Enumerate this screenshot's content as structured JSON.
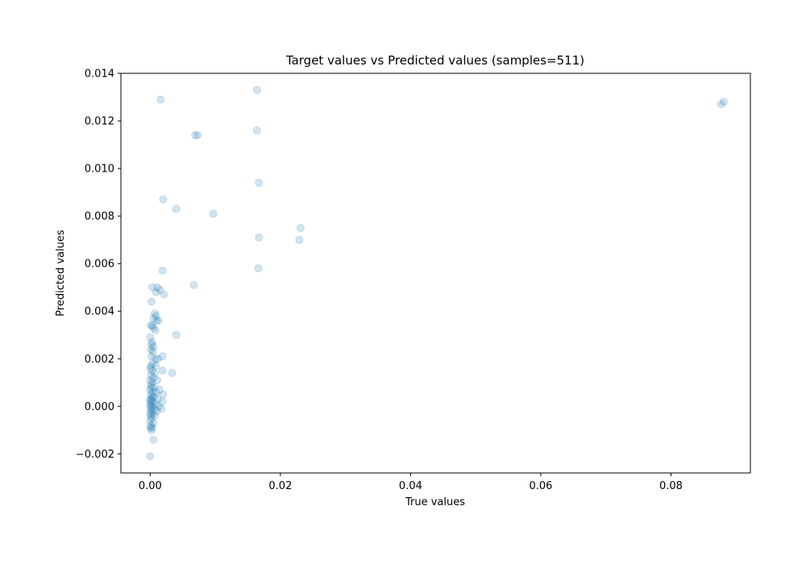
{
  "chart_data": {
    "type": "scatter",
    "title": "Target values vs Predicted values (samples=511)",
    "xlabel": "True values",
    "ylabel": "Predicted values",
    "xlim": [
      -0.0045,
      0.0922
    ],
    "ylim": [
      -0.0028,
      0.014
    ],
    "xticks": [
      0.0,
      0.02,
      0.04,
      0.06,
      0.08
    ],
    "xtick_labels": [
      "0.00",
      "0.02",
      "0.04",
      "0.06",
      "0.08"
    ],
    "yticks": [
      -0.002,
      0.0,
      0.002,
      0.004,
      0.006,
      0.008,
      0.01,
      0.012,
      0.014
    ],
    "ytick_labels": [
      "−0.002",
      "0.000",
      "0.002",
      "0.004",
      "0.006",
      "0.008",
      "0.010",
      "0.012",
      "0.014"
    ],
    "grid": false,
    "marker_color": "#1f77b4",
    "marker_alpha": 0.2,
    "points": [
      [
        0.0881,
        0.0128
      ],
      [
        0.0877,
        0.0127
      ],
      [
        0.0164,
        0.0133
      ],
      [
        0.0016,
        0.0129
      ],
      [
        0.0069,
        0.0114
      ],
      [
        0.0073,
        0.0114
      ],
      [
        0.0164,
        0.0116
      ],
      [
        0.0167,
        0.0094
      ],
      [
        0.002,
        0.0087
      ],
      [
        0.004,
        0.0083
      ],
      [
        0.0097,
        0.0081
      ],
      [
        0.0231,
        0.0075
      ],
      [
        0.0167,
        0.0071
      ],
      [
        0.0229,
        0.007
      ],
      [
        0.0166,
        0.0058
      ],
      [
        0.0019,
        0.0057
      ],
      [
        0.0067,
        0.0051
      ],
      [
        0.0003,
        0.005
      ],
      [
        0.0011,
        0.005
      ],
      [
        0.0015,
        0.0049
      ],
      [
        0.0009,
        0.0048
      ],
      [
        0.0021,
        0.0047
      ],
      [
        0.0002,
        0.0044
      ],
      [
        0.0007,
        0.0039
      ],
      [
        0.0009,
        0.0038
      ],
      [
        0.0005,
        0.0037
      ],
      [
        0.001,
        0.0036
      ],
      [
        0.0013,
        0.0036
      ],
      [
        0.0003,
        0.0034
      ],
      [
        0.0001,
        0.0034
      ],
      [
        0.0005,
        0.0033
      ],
      [
        0.0008,
        0.0032
      ],
      [
        0.004,
        0.003
      ],
      [
        0.0,
        0.0029
      ],
      [
        0.0003,
        0.0027
      ],
      [
        0.0002,
        0.0026
      ],
      [
        0.0005,
        0.0025
      ],
      [
        0.0001,
        0.0024
      ],
      [
        0.0004,
        0.0023
      ],
      [
        0.0019,
        0.0021
      ],
      [
        0.0002,
        0.0021
      ],
      [
        0.0008,
        0.002
      ],
      [
        0.0012,
        0.002
      ],
      [
        0.0004,
        0.0018
      ],
      [
        0.0001,
        0.0017
      ],
      [
        0.0009,
        0.0017
      ],
      [
        0.0,
        0.0016
      ],
      [
        0.0019,
        0.0015
      ],
      [
        0.0003,
        0.0015
      ],
      [
        0.0034,
        0.0014
      ],
      [
        0.0007,
        0.0014
      ],
      [
        0.0001,
        0.0013
      ],
      [
        0.0005,
        0.0012
      ],
      [
        0.0011,
        0.0011
      ],
      [
        0.0,
        0.0011
      ],
      [
        0.0003,
        0.001
      ],
      [
        0.0001,
        0.0009
      ],
      [
        0.0006,
        0.0008
      ],
      [
        0.0002,
        0.0008
      ],
      [
        0.0014,
        0.0007
      ],
      [
        0.0,
        0.0007
      ],
      [
        0.0004,
        0.0006
      ],
      [
        0.0009,
        0.0006
      ],
      [
        0.0001,
        0.0005
      ],
      [
        0.002,
        0.0005
      ],
      [
        0.0003,
        0.0004
      ],
      [
        0.0006,
        0.0004
      ],
      [
        0.0,
        0.0003
      ],
      [
        0.0012,
        0.0003
      ],
      [
        0.0002,
        0.0003
      ],
      [
        0.0004,
        0.0002
      ],
      [
        0.0019,
        0.0002
      ],
      [
        0.0,
        0.0002
      ],
      [
        0.0008,
        0.0001
      ],
      [
        0.0001,
        0.0001
      ],
      [
        0.0013,
        0.0
      ],
      [
        0.0003,
        0.0
      ],
      [
        0.0,
        0.0
      ],
      [
        0.0006,
        -0.0001
      ],
      [
        0.0017,
        -0.0001
      ],
      [
        0.0001,
        -0.0001
      ],
      [
        0.0002,
        -0.0002
      ],
      [
        0.001,
        -0.0002
      ],
      [
        0.0004,
        -0.0003
      ],
      [
        0.0,
        -0.0003
      ],
      [
        0.0007,
        -0.0004
      ],
      [
        0.0001,
        -0.0004
      ],
      [
        0.0002,
        -0.0005
      ],
      [
        0.0,
        -0.0006
      ],
      [
        0.0005,
        -0.0007
      ],
      [
        0.0001,
        -0.0008
      ],
      [
        0.0,
        -0.0009
      ],
      [
        0.0003,
        -0.0009
      ],
      [
        0.0002,
        -0.001
      ],
      [
        0.0005,
        -0.0014
      ],
      [
        0.0,
        -0.0021
      ]
    ]
  }
}
